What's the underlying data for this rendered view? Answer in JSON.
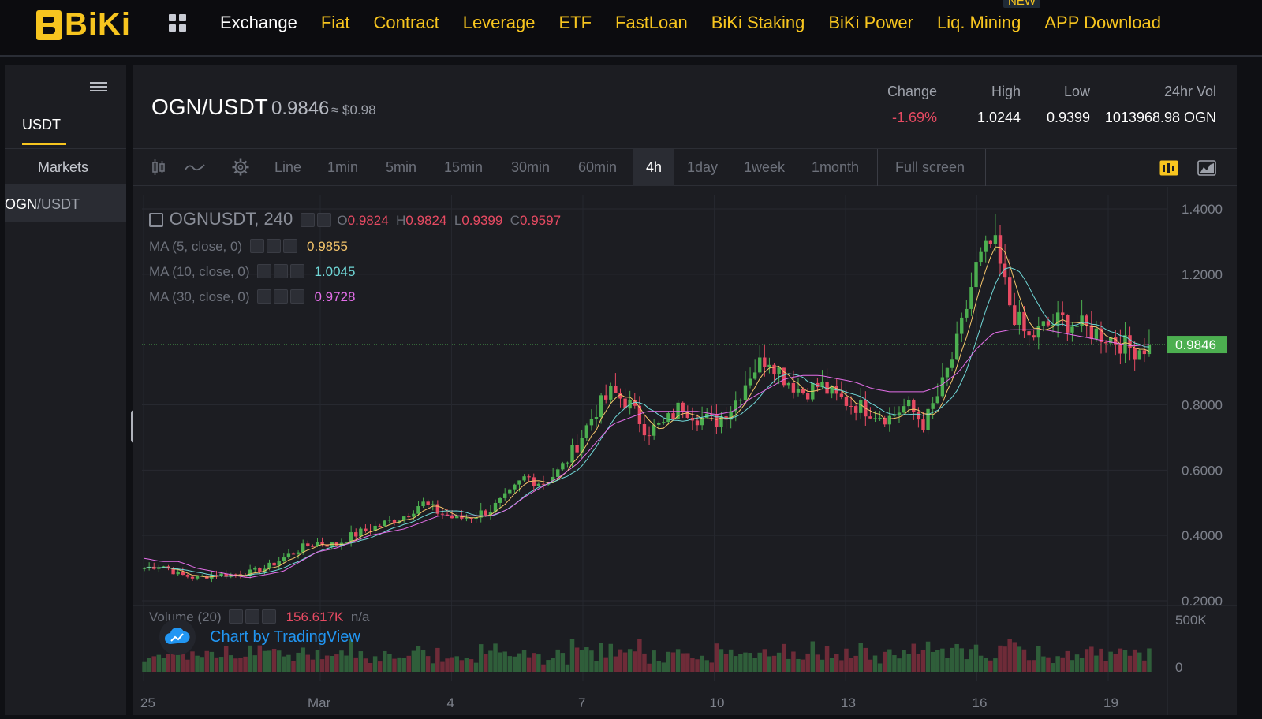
{
  "nav": {
    "logo": "BiKi",
    "links": [
      "Exchange",
      "Fiat",
      "Contract",
      "Leverage",
      "ETF",
      "FastLoan",
      "BiKi Staking",
      "BiKi Power",
      "Liq. Mining",
      "APP Download"
    ],
    "new_badge": "NEW"
  },
  "sidebar": {
    "tab": "USDT",
    "markets_label": "Markets",
    "pair_base": "OGN",
    "pair_quote": "/USDT"
  },
  "header": {
    "pair": "OGN/USDT",
    "price": "0.9846",
    "usd": "≈ $0.98",
    "stats": [
      {
        "label": "Change",
        "value": "-1.69%"
      },
      {
        "label": "High",
        "value": "1.0244"
      },
      {
        "label": "Low",
        "value": "0.9399"
      },
      {
        "label": "24hr Vol",
        "value": "1013968.98 OGN"
      }
    ]
  },
  "toolbar": {
    "line": "Line",
    "intervals": [
      "1min",
      "5min",
      "15min",
      "30min",
      "60min",
      "4h",
      "1day",
      "1week",
      "1month"
    ],
    "active_interval": "4h",
    "fullscreen": "Full screen"
  },
  "legend": {
    "symbol": "OGNUSDT, 240",
    "o_label": "O",
    "o": "0.9824",
    "h_label": "H",
    "h": "0.9824",
    "l_label": "L",
    "l": "0.9399",
    "c_label": "C",
    "c": "0.9597",
    "ma5_label": "MA (5, close, 0)",
    "ma5": "0.9855",
    "ma10_label": "MA (10, close, 0)",
    "ma10": "1.0045",
    "ma30_label": "MA (30, close, 0)",
    "ma30": "0.9728",
    "vol_label": "Volume (20)",
    "vol": "156.617K",
    "vol_na": "n/a"
  },
  "tradingview": "Chart by TradingView",
  "colors": {
    "up": "#4caf50",
    "down": "#e64a62",
    "ma5": "#f5c56b",
    "ma10": "#6fd6d6",
    "ma30": "#e36ee8",
    "brand": "#f7c51f"
  },
  "chart_data": {
    "type": "candlestick",
    "interval": "4h",
    "y_ticks": [
      "1.4000",
      "1.2000",
      "0.8000",
      "0.6000",
      "0.4000",
      "0.2000"
    ],
    "y_range": [
      0.2,
      1.4
    ],
    "vol_ticks": [
      "500K",
      "0"
    ],
    "x_ticks": [
      "25",
      "Mar",
      "4",
      "7",
      "10",
      "13",
      "16",
      "19"
    ],
    "last_price": "0.9846",
    "close_path": [
      [
        0.3,
        0.33
      ],
      [
        0.31,
        0.32
      ],
      [
        0.28,
        0.32
      ],
      [
        0.27,
        0.3
      ],
      [
        0.28,
        0.29
      ],
      [
        0.28,
        0.28
      ],
      [
        0.285,
        0.27
      ],
      [
        0.3,
        0.28
      ],
      [
        0.33,
        0.29
      ],
      [
        0.36,
        0.32
      ],
      [
        0.38,
        0.35
      ],
      [
        0.37,
        0.36
      ],
      [
        0.4,
        0.38
      ],
      [
        0.42,
        0.4
      ],
      [
        0.44,
        0.41
      ],
      [
        0.46,
        0.42
      ],
      [
        0.5,
        0.44
      ],
      [
        0.47,
        0.46
      ],
      [
        0.45,
        0.46
      ],
      [
        0.46,
        0.46
      ],
      [
        0.48,
        0.46
      ],
      [
        0.52,
        0.48
      ],
      [
        0.58,
        0.52
      ],
      [
        0.56,
        0.55
      ],
      [
        0.6,
        0.58
      ],
      [
        0.68,
        0.62
      ],
      [
        0.78,
        0.68
      ],
      [
        0.84,
        0.74
      ],
      [
        0.8,
        0.76
      ],
      [
        0.72,
        0.78
      ],
      [
        0.74,
        0.78
      ],
      [
        0.8,
        0.78
      ],
      [
        0.76,
        0.78
      ],
      [
        0.75,
        0.77
      ],
      [
        0.8,
        0.78
      ],
      [
        0.9,
        0.82
      ],
      [
        0.95,
        0.85
      ],
      [
        0.88,
        0.88
      ],
      [
        0.84,
        0.89
      ],
      [
        0.86,
        0.89
      ],
      [
        0.82,
        0.88
      ],
      [
        0.8,
        0.87
      ],
      [
        0.78,
        0.85
      ],
      [
        0.76,
        0.84
      ],
      [
        0.8,
        0.84
      ],
      [
        0.74,
        0.84
      ],
      [
        0.85,
        0.86
      ],
      [
        1.0,
        0.9
      ],
      [
        1.22,
        0.97
      ],
      [
        1.3,
        1.02
      ],
      [
        1.1,
        1.03
      ],
      [
        1.0,
        1.03
      ],
      [
        1.04,
        1.03
      ],
      [
        1.06,
        1.02
      ],
      [
        1.04,
        1.01
      ],
      [
        1.02,
        1.0
      ],
      [
        1.0,
        0.99
      ],
      [
        0.97,
        0.98
      ],
      [
        0.98,
        0.985
      ]
    ]
  }
}
